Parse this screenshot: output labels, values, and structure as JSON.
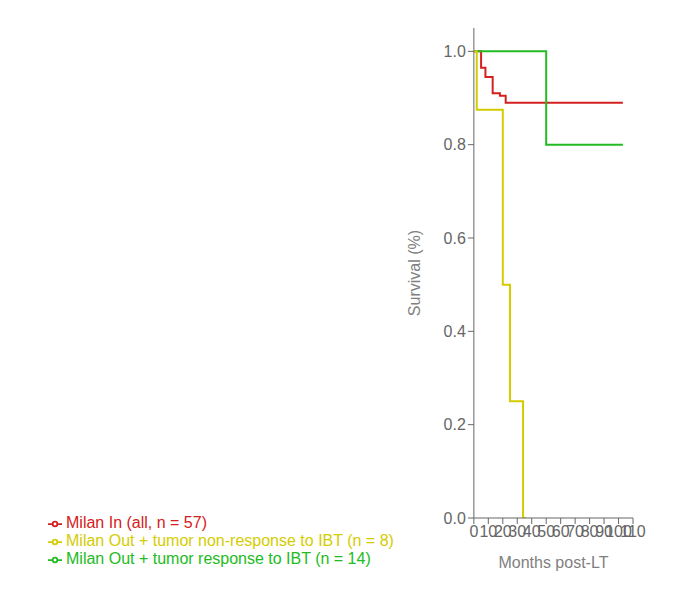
{
  "chart_data": {
    "type": "line",
    "xlabel": "Months post-LT",
    "ylabel": "Survival (%)",
    "xlim": [
      0,
      110
    ],
    "ylim": [
      0.0,
      1.05
    ],
    "xticks": [
      0,
      10,
      20,
      30,
      40,
      50,
      60,
      70,
      80,
      90,
      100,
      110
    ],
    "yticks": [
      {
        "value": 0,
        "label": "0.0"
      },
      0.2,
      0.4,
      0.6,
      0.8,
      {
        "value": 1,
        "label": "1.0"
      }
    ],
    "legend": "bottom",
    "series": [
      {
        "name": "Milan In (all, n = 57)",
        "color": "#d42020",
        "x": [
          0,
          5,
          5,
          8,
          8,
          13,
          13,
          18,
          18,
          22,
          22,
          103
        ],
        "values": [
          1.0,
          1.0,
          0.965,
          0.965,
          0.945,
          0.945,
          0.91,
          0.91,
          0.905,
          0.905,
          0.89,
          0.89
        ]
      },
      {
        "name": "Milan Out + tumor response to IBT (n = 14)",
        "color": "#22bb22",
        "x": [
          0,
          50,
          50,
          103
        ],
        "values": [
          1.0,
          1.0,
          0.8,
          0.8
        ]
      },
      {
        "name": "Milan Out + tumor non-response to IBT (n = 8)",
        "color": "#d4cc00",
        "x": [
          0,
          2,
          2,
          20,
          20,
          25,
          25,
          28,
          28,
          34,
          34,
          36
        ],
        "values": [
          1.0,
          1.0,
          0.875,
          0.875,
          0.5,
          0.5,
          0.25,
          0.25,
          0.25,
          0.25,
          0.0,
          0.0
        ]
      }
    ]
  }
}
